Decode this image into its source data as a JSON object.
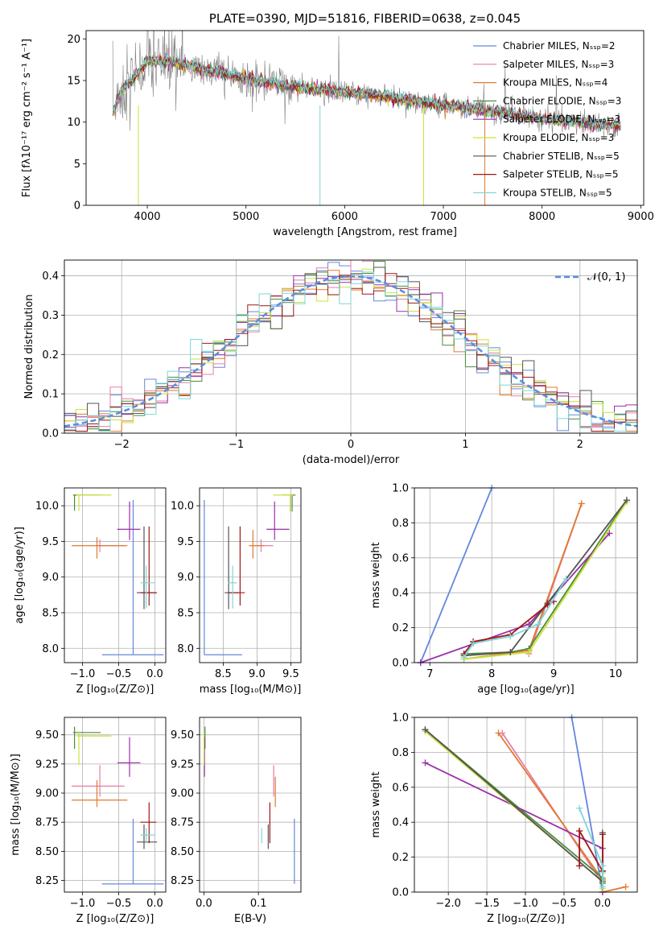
{
  "colors": {
    "cornflower": "#6487dc",
    "pink": "#e77ea4",
    "orange": "#e07a2e",
    "green": "#4c8c3c",
    "purple": "#9b30a8",
    "yellow": "#c9e33c",
    "black": "#555555",
    "darkred": "#a01818",
    "cyan": "#7fd6d6",
    "spectrum": "#7f7f7f"
  },
  "chart_data": [
    {
      "id": "spectrum",
      "type": "line",
      "title": "PLATE=0390, MJD=51816, FIBERID=0638, z=0.045",
      "xlabel": "wavelength [Angstrom, rest frame]",
      "ylabel": "Flux [fλ10⁻¹⁷ erg cm⁻² s⁻¹ A⁻¹]",
      "xlim": [
        3380,
        9030
      ],
      "ylim": [
        0,
        21
      ],
      "xticks": [
        "4000",
        "5000",
        "6000",
        "7000",
        "8000",
        "9000"
      ],
      "yticks": [
        "0",
        "5",
        "10",
        "15",
        "20"
      ],
      "grid": false,
      "legend_position": "top-right",
      "legend": [
        "Chabrier MILES, Nₛₛₚ=2",
        "Salpeter MILES, Nₛₛₚ=3",
        "Kroupa MILES, Nₛₛₚ=4",
        "Chabrier ELODIE, Nₛₛₚ=3",
        "Salpeter ELODIE, Nₛₛₚ=3",
        "Kroupa ELODIE, Nₛₛₚ=3",
        "Chabrier STELIB, Nₛₛₚ=5",
        "Salpeter STELIB, Nₛₛₚ=5",
        "Kroupa STELIB, Nₛₛₚ=5"
      ],
      "model_continuum": {
        "x": [
          3650,
          3700,
          3800,
          3900,
          4000,
          4200,
          4400,
          4600,
          4800,
          5000,
          5300,
          5600,
          6000,
          6500,
          7000,
          7500,
          8000,
          8500,
          8800
        ],
        "y": [
          11.2,
          12.8,
          14.5,
          15.8,
          17.3,
          17.3,
          16.8,
          16.2,
          15.8,
          15.2,
          14.6,
          14.1,
          13.6,
          12.9,
          12.0,
          11.3,
          10.4,
          9.8,
          9.6
        ]
      }
    },
    {
      "id": "residuals",
      "type": "line",
      "xlabel": "(data-model)/error",
      "ylabel": "Normed distribution",
      "xlim": [
        -2.5,
        2.5
      ],
      "ylim": [
        0,
        0.44
      ],
      "xticks": [
        "−2",
        "−1",
        "0",
        "1",
        "2"
      ],
      "yticks": [
        "0.0",
        "0.1",
        "0.2",
        "0.3",
        "0.4"
      ],
      "grid": true,
      "legend_position": "top-right",
      "legend": [
        "𝒩(0, 1)"
      ],
      "gaussian": {
        "mean": 0,
        "sigma": 1
      }
    },
    {
      "id": "age-vs-z",
      "type": "scatter",
      "xlabel": "Z [log₁₀(Z/Z⊙)]",
      "ylabel": "age  [log₁₀(age/yr)]",
      "xlim": [
        -1.25,
        0.15
      ],
      "ylim": [
        7.8,
        10.25
      ],
      "xticks": [
        "−1.0",
        "−0.5",
        "0.0"
      ],
      "yticks": [
        "8.0",
        "8.5",
        "9.0",
        "9.5",
        "10.0"
      ],
      "grid": true,
      "points": [
        {
          "c": "cornflower",
          "x": -0.3,
          "y": 7.91,
          "x0": -0.73,
          "x1": 0.12,
          "y0": 7.91,
          "y1": 10.08
        },
        {
          "c": "pink",
          "x": -0.76,
          "y": 9.44,
          "x0": -0.83,
          "x1": -0.42,
          "y0": 9.35,
          "y1": 9.53
        },
        {
          "c": "orange",
          "x": -0.8,
          "y": 9.44,
          "x0": -1.15,
          "x1": -0.38,
          "y0": 9.26,
          "y1": 9.56
        },
        {
          "c": "green",
          "x": -1.11,
          "y": 10.15,
          "x0": -1.13,
          "x1": -0.75,
          "y0": 9.93,
          "y1": 10.15
        },
        {
          "c": "purple",
          "x": -0.35,
          "y": 9.67,
          "x0": -0.52,
          "x1": -0.2,
          "y0": 9.52,
          "y1": 10.06
        },
        {
          "c": "yellow",
          "x": -1.05,
          "y": 10.15,
          "x0": -1.08,
          "x1": -0.6,
          "y0": 9.93,
          "y1": 10.15
        },
        {
          "c": "black",
          "x": -0.15,
          "y": 8.78,
          "x0": -0.25,
          "x1": 0.03,
          "y0": 8.55,
          "y1": 9.71
        },
        {
          "c": "darkred",
          "x": -0.08,
          "y": 8.78,
          "x0": -0.2,
          "x1": 0.02,
          "y0": 8.6,
          "y1": 9.71
        },
        {
          "c": "cyan",
          "x": -0.12,
          "y": 8.92,
          "x0": -0.2,
          "x1": 0.0,
          "y0": 8.56,
          "y1": 9.16
        }
      ]
    },
    {
      "id": "age-vs-mass",
      "type": "scatter",
      "xlabel": "mass [log₁₀(M/M⊙)]",
      "ylabel": "",
      "xlim": [
        8.15,
        9.65
      ],
      "ylim": [
        7.8,
        10.25
      ],
      "xticks": [
        "8.5",
        "9.0",
        "9.5"
      ],
      "yticks": [
        "8.0",
        "8.5",
        "9.0",
        "9.5",
        "10.0"
      ],
      "grid": true,
      "points": [
        {
          "c": "cornflower",
          "x": 8.22,
          "y": 7.91,
          "x0": 8.22,
          "x1": 8.78,
          "y0": 7.91,
          "y1": 10.08
        },
        {
          "c": "pink",
          "x": 9.06,
          "y": 9.44,
          "x0": 8.97,
          "x1": 9.24,
          "y0": 9.35,
          "y1": 9.53
        },
        {
          "c": "orange",
          "x": 8.94,
          "y": 9.44,
          "x0": 8.88,
          "x1": 9.11,
          "y0": 9.26,
          "y1": 9.66
        },
        {
          "c": "green",
          "x": 9.52,
          "y": 10.15,
          "x0": 9.38,
          "x1": 9.57,
          "y0": 9.92,
          "y1": 10.15
        },
        {
          "c": "purple",
          "x": 9.26,
          "y": 9.67,
          "x0": 9.14,
          "x1": 9.48,
          "y0": 9.52,
          "y1": 10.06
        },
        {
          "c": "yellow",
          "x": 9.49,
          "y": 10.15,
          "x0": 9.24,
          "x1": 9.53,
          "y0": 9.92,
          "y1": 10.15
        },
        {
          "c": "black",
          "x": 8.58,
          "y": 8.78,
          "x0": 8.52,
          "x1": 8.73,
          "y0": 8.55,
          "y1": 9.71
        },
        {
          "c": "darkred",
          "x": 8.75,
          "y": 8.78,
          "x0": 8.57,
          "x1": 8.82,
          "y0": 8.6,
          "y1": 9.71
        },
        {
          "c": "cyan",
          "x": 8.64,
          "y": 8.92,
          "x0": 8.57,
          "x1": 8.7,
          "y0": 8.56,
          "y1": 9.16
        }
      ]
    },
    {
      "id": "weight-vs-age",
      "type": "line",
      "xlabel": "age  [log₁₀(age/yr)]",
      "ylabel": "mass weight",
      "xlim": [
        6.75,
        10.35
      ],
      "ylim": [
        0,
        1
      ],
      "xticks": [
        "7",
        "8",
        "9",
        "10"
      ],
      "yticks": [
        "0.0",
        "0.2",
        "0.4",
        "0.6",
        "0.8",
        "1.0"
      ],
      "grid": true,
      "series": [
        {
          "c": "cornflower",
          "x": [
            6.85,
            8.0
          ],
          "y": [
            0.0,
            1.0
          ]
        },
        {
          "c": "pink",
          "x": [
            8.6,
            9.45
          ],
          "y": [
            0.05,
            0.91
          ]
        },
        {
          "c": "orange",
          "x": [
            7.55,
            8.6,
            9.45
          ],
          "y": [
            0.02,
            0.07,
            0.91
          ]
        },
        {
          "c": "green",
          "x": [
            7.55,
            8.3,
            8.6,
            10.18
          ],
          "y": [
            0.05,
            0.06,
            0.08,
            0.93
          ]
        },
        {
          "c": "purple",
          "x": [
            6.85,
            8.6,
            9.9
          ],
          "y": [
            0.0,
            0.22,
            0.74
          ]
        },
        {
          "c": "yellow",
          "x": [
            7.55,
            8.6,
            10.18
          ],
          "y": [
            0.02,
            0.06,
            0.92
          ]
        },
        {
          "c": "black",
          "x": [
            7.55,
            8.3,
            8.9,
            10.18
          ],
          "y": [
            0.04,
            0.06,
            0.34,
            0.93
          ]
        },
        {
          "c": "darkred",
          "x": [
            7.55,
            7.7,
            8.3,
            8.9,
            9.0
          ],
          "y": [
            0.05,
            0.12,
            0.16,
            0.33,
            0.35
          ]
        },
        {
          "c": "cyan",
          "x": [
            7.55,
            7.7,
            8.3,
            8.75,
            9.2
          ],
          "y": [
            0.03,
            0.11,
            0.15,
            0.22,
            0.48
          ]
        }
      ]
    },
    {
      "id": "mass-vs-z",
      "type": "scatter",
      "xlabel": "Z [log₁₀(Z/Z⊙)]",
      "ylabel": "mass [log₁₀(M/M⊙)]",
      "xlim": [
        -1.25,
        0.15
      ],
      "ylim": [
        8.15,
        9.65
      ],
      "xticks": [
        "−1.0",
        "−0.5",
        "0.0"
      ],
      "yticks": [
        "8.25",
        "8.50",
        "8.75",
        "9.00",
        "9.25",
        "9.50"
      ],
      "grid": true,
      "points": [
        {
          "c": "cornflower",
          "x": -0.3,
          "y": 8.22,
          "x0": -0.73,
          "x1": 0.12,
          "y0": 8.22,
          "y1": 8.78
        },
        {
          "c": "pink",
          "x": -0.76,
          "y": 9.06,
          "x0": -1.15,
          "x1": -0.42,
          "y0": 8.97,
          "y1": 9.24
        },
        {
          "c": "orange",
          "x": -0.8,
          "y": 8.94,
          "x0": -1.15,
          "x1": -0.38,
          "y0": 8.88,
          "y1": 9.11
        },
        {
          "c": "green",
          "x": -1.11,
          "y": 9.52,
          "x0": -1.13,
          "x1": -0.75,
          "y0": 9.38,
          "y1": 9.57
        },
        {
          "c": "purple",
          "x": -0.35,
          "y": 9.26,
          "x0": -0.52,
          "x1": -0.2,
          "y0": 9.14,
          "y1": 9.48
        },
        {
          "c": "yellow",
          "x": -1.05,
          "y": 9.49,
          "x0": -1.08,
          "x1": -0.6,
          "y0": 9.24,
          "y1": 9.53
        },
        {
          "c": "black",
          "x": -0.15,
          "y": 8.58,
          "x0": -0.25,
          "x1": 0.03,
          "y0": 8.52,
          "y1": 8.73
        },
        {
          "c": "darkred",
          "x": -0.08,
          "y": 8.75,
          "x0": -0.2,
          "x1": 0.02,
          "y0": 8.57,
          "y1": 8.92
        },
        {
          "c": "cyan",
          "x": -0.12,
          "y": 8.64,
          "x0": -0.2,
          "x1": 0.0,
          "y0": 8.57,
          "y1": 8.7
        }
      ]
    },
    {
      "id": "mass-vs-ebv",
      "type": "scatter",
      "xlabel": "E(B-V)",
      "ylabel": "",
      "xlim": [
        -0.008,
        0.178
      ],
      "ylim": [
        8.15,
        9.65
      ],
      "xticks": [
        "0.0",
        "0.1"
      ],
      "yticks": [
        "8.25",
        "8.50",
        "8.75",
        "9.00",
        "9.25",
        "9.50"
      ],
      "grid": true,
      "points": [
        {
          "c": "cornflower",
          "x": 0.166,
          "y": 8.22,
          "x0": 0.166,
          "x1": 0.166,
          "y0": 8.22,
          "y1": 8.78
        },
        {
          "c": "pink",
          "x": 0.128,
          "y": 9.06,
          "x0": 0.128,
          "x1": 0.128,
          "y0": 8.97,
          "y1": 9.24
        },
        {
          "c": "orange",
          "x": 0.131,
          "y": 8.94,
          "x0": 0.131,
          "x1": 0.131,
          "y0": 8.88,
          "y1": 9.14
        },
        {
          "c": "green",
          "x": 0.002,
          "y": 9.52,
          "x0": 0.002,
          "x1": 0.002,
          "y0": 9.38,
          "y1": 9.57
        },
        {
          "c": "purple",
          "x": 0.001,
          "y": 9.26,
          "x0": 0.001,
          "x1": 0.001,
          "y0": 9.14,
          "y1": 9.48
        },
        {
          "c": "yellow",
          "x": 0.0,
          "y": 9.49,
          "x0": 0.0,
          "x1": 0.0,
          "y0": 9.24,
          "y1": 9.53
        },
        {
          "c": "black",
          "x": 0.118,
          "y": 8.58,
          "x0": 0.118,
          "x1": 0.118,
          "y0": 8.52,
          "y1": 8.73
        },
        {
          "c": "darkred",
          "x": 0.121,
          "y": 8.75,
          "x0": 0.121,
          "x1": 0.121,
          "y0": 8.57,
          "y1": 8.92
        },
        {
          "c": "cyan",
          "x": 0.106,
          "y": 8.64,
          "x0": 0.106,
          "x1": 0.106,
          "y0": 8.57,
          "y1": 8.7
        }
      ]
    },
    {
      "id": "weight-vs-z",
      "type": "line",
      "xlabel": "Z [log₁₀(Z/Z⊙)]",
      "ylabel": "mass weight",
      "xlim": [
        -2.44,
        0.45
      ],
      "ylim": [
        0,
        1
      ],
      "xticks": [
        "−2.0",
        "−1.5",
        "−1.0",
        "−0.5",
        "0.0"
      ],
      "yticks": [
        "0.0",
        "0.2",
        "0.4",
        "0.6",
        "0.8",
        "1.0"
      ],
      "grid": true,
      "series": [
        {
          "c": "cornflower",
          "x": [
            -0.4,
            0.0
          ],
          "y": [
            1.0,
            0.0
          ]
        },
        {
          "c": "pink",
          "x": [
            -1.3,
            0.0
          ],
          "y": [
            0.91,
            0.05
          ]
        },
        {
          "c": "orange",
          "x": [
            -1.35,
            0.0,
            0.0,
            0.3
          ],
          "y": [
            0.91,
            0.07,
            0.0,
            0.03
          ]
        },
        {
          "c": "green",
          "x": [
            -2.3,
            0.0,
            0.0
          ],
          "y": [
            0.93,
            0.08,
            0.05
          ]
        },
        {
          "c": "purple",
          "x": [
            -2.3,
            0.0,
            0.0
          ],
          "y": [
            0.74,
            0.25,
            0.0
          ]
        },
        {
          "c": "yellow",
          "x": [
            -2.3,
            0.0,
            0.0
          ],
          "y": [
            0.92,
            0.06,
            0.02
          ]
        },
        {
          "c": "black",
          "x": [
            -2.3,
            0.0,
            0.0,
            0.0
          ],
          "y": [
            0.93,
            0.06,
            0.12,
            0.34
          ]
        },
        {
          "c": "darkred",
          "x": [
            -0.3,
            -0.3,
            0.0,
            0.0
          ],
          "y": [
            0.15,
            0.35,
            0.12,
            0.33
          ]
        },
        {
          "c": "cyan",
          "x": [
            -0.3,
            0.0,
            0.0,
            0.0
          ],
          "y": [
            0.48,
            0.15,
            0.11,
            0.03
          ]
        }
      ]
    }
  ]
}
